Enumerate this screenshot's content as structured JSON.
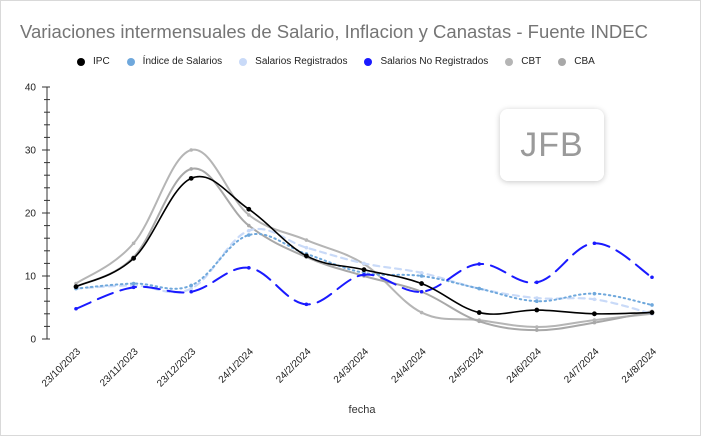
{
  "chart_data": {
    "type": "line",
    "title": "Variaciones intermensuales de Salario, Inflacion y Canastas - Fuente INDEC",
    "xlabel": "fecha",
    "ylabel": "",
    "ylim": [
      0,
      40
    ],
    "yticks": [
      0,
      10,
      20,
      30,
      40
    ],
    "categories": [
      "23/10/2023",
      "23/11/2023",
      "23/12/2023",
      "24/1/2024",
      "24/2/2024",
      "24/3/2024",
      "24/4/2024",
      "24/5/2024",
      "24/6/2024",
      "24/7/2024",
      "24/8/2024"
    ],
    "legend_position": "top",
    "grid": false,
    "series": [
      {
        "name": "IPC",
        "color": "#000000",
        "style": "solid",
        "width": 1.6,
        "values": [
          8.3,
          12.8,
          25.5,
          20.6,
          13.2,
          11.0,
          8.8,
          4.2,
          4.6,
          4.0,
          4.2
        ]
      },
      {
        "name": "Índice de Salarios",
        "color": "#6fa8dc",
        "style": "dotted",
        "width": 2,
        "values": [
          8.0,
          8.8,
          8.5,
          16.5,
          13.5,
          10.5,
          10.0,
          8.0,
          6.0,
          7.2,
          5.4
        ]
      },
      {
        "name": "Salarios Registrados",
        "color": "#c9daf8",
        "style": "dashed",
        "width": 2.2,
        "values": [
          8.0,
          8.5,
          8.0,
          17.2,
          14.5,
          12.0,
          10.5,
          8.0,
          6.5,
          6.3,
          4.0
        ]
      },
      {
        "name": "Salarios No Registrados",
        "color": "#1a1aff",
        "style": "longdash",
        "width": 2,
        "values": [
          4.8,
          8.2,
          7.5,
          11.3,
          5.5,
          10.2,
          7.5,
          11.9,
          9.0,
          15.2,
          9.8
        ]
      },
      {
        "name": "CBT",
        "color": "#b5b5b5",
        "style": "solid",
        "width": 2,
        "values": [
          8.8,
          15.2,
          30.0,
          19.7,
          15.7,
          11.9,
          4.2,
          3.0,
          1.9,
          3.0,
          4.0
        ]
      },
      {
        "name": "CBA",
        "color": "#a8a8a8",
        "style": "solid",
        "width": 2,
        "values": [
          8.3,
          13.0,
          27.0,
          18.0,
          13.0,
          10.0,
          7.5,
          2.8,
          1.4,
          2.6,
          4.4
        ]
      }
    ]
  },
  "watermark": "JFB"
}
